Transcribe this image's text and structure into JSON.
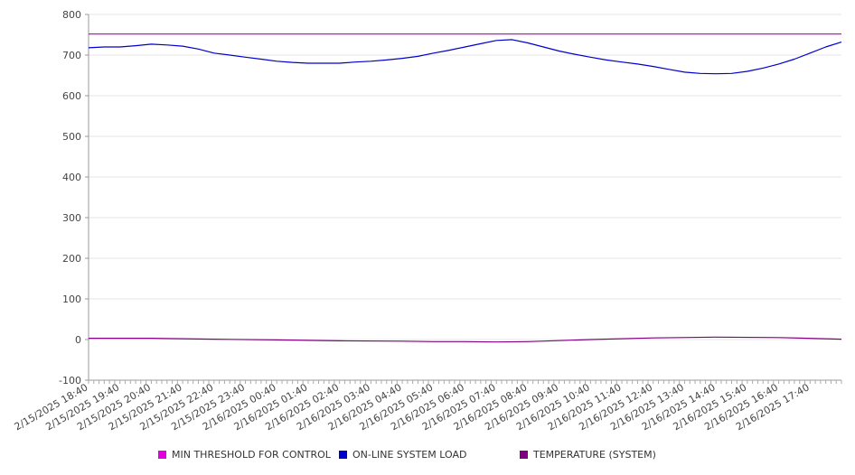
{
  "chart_data": {
    "type": "line",
    "title": "",
    "xlabel": "",
    "ylabel": "",
    "ylim": [
      -100,
      800
    ],
    "y_ticks": [
      "800",
      "700",
      "600",
      "500",
      "400",
      "300",
      "200",
      "100",
      "0",
      "-100"
    ],
    "x_tick_labels": [
      "2/15/2025 18:40",
      "2/15/2025 19:40",
      "2/15/2025 20:40",
      "2/15/2025 21:40",
      "2/15/2025 22:40",
      "2/15/2025 23:40",
      "2/16/2025 00:40",
      "2/16/2025 01:40",
      "2/16/2025 02:40",
      "2/16/2025 03:40",
      "2/16/2025 04:40",
      "2/16/2025 05:40",
      "2/16/2025 06:40",
      "2/16/2025 07:40",
      "2/16/2025 08:40",
      "2/16/2025 09:40",
      "2/16/2025 10:40",
      "2/16/2025 11:40",
      "2/16/2025 12:40",
      "2/16/2025 13:40",
      "2/16/2025 14:40",
      "2/16/2025 15:40",
      "2/16/2025 16:40",
      "2/16/2025 17:40"
    ],
    "grid": true,
    "legend_position": "bottom",
    "series": [
      {
        "name": "MIN THRESHOLD FOR CONTROL",
        "color": "#e000e0",
        "x": [
          "2/15/2025 18:40",
          "2/16/2025 18:40"
        ],
        "values": [
          752,
          752
        ]
      },
      {
        "name": "ON-LINE SYSTEM LOAD",
        "color": "#0000cc",
        "x": [
          "2/15/2025 18:40",
          "2/15/2025 19:10",
          "2/15/2025 19:40",
          "2/15/2025 20:10",
          "2/15/2025 20:40",
          "2/15/2025 21:10",
          "2/15/2025 21:40",
          "2/15/2025 22:10",
          "2/15/2025 22:40",
          "2/15/2025 23:10",
          "2/15/2025 23:40",
          "2/16/2025 00:10",
          "2/16/2025 00:40",
          "2/16/2025 01:10",
          "2/16/2025 01:40",
          "2/16/2025 02:10",
          "2/16/2025 02:40",
          "2/16/2025 03:10",
          "2/16/2025 03:40",
          "2/16/2025 04:10",
          "2/16/2025 04:40",
          "2/16/2025 05:10",
          "2/16/2025 05:40",
          "2/16/2025 06:10",
          "2/16/2025 06:40",
          "2/16/2025 07:10",
          "2/16/2025 07:40",
          "2/16/2025 08:10",
          "2/16/2025 08:40",
          "2/16/2025 09:10",
          "2/16/2025 09:40",
          "2/16/2025 10:10",
          "2/16/2025 10:40",
          "2/16/2025 11:10",
          "2/16/2025 11:40",
          "2/16/2025 12:10",
          "2/16/2025 12:40",
          "2/16/2025 13:10",
          "2/16/2025 13:40",
          "2/16/2025 14:10",
          "2/16/2025 14:40",
          "2/16/2025 15:10",
          "2/16/2025 15:40",
          "2/16/2025 16:10",
          "2/16/2025 16:40",
          "2/16/2025 17:10",
          "2/16/2025 17:40",
          "2/16/2025 18:10",
          "2/16/2025 18:40"
        ],
        "values": [
          718,
          720,
          720,
          723,
          727,
          725,
          722,
          715,
          705,
          700,
          695,
          690,
          685,
          682,
          680,
          680,
          680,
          683,
          685,
          688,
          692,
          697,
          705,
          712,
          720,
          728,
          736,
          738,
          730,
          720,
          710,
          702,
          695,
          688,
          683,
          678,
          672,
          665,
          658,
          655,
          654,
          655,
          660,
          668,
          678,
          690,
          705,
          720,
          732
        ]
      },
      {
        "name": "TEMPERATURE (SYSTEM)",
        "color": "#800080",
        "x": [
          "2/15/2025 18:40",
          "2/15/2025 20:40",
          "2/15/2025 22:40",
          "2/16/2025 00:40",
          "2/16/2025 02:40",
          "2/16/2025 04:40",
          "2/16/2025 05:40",
          "2/16/2025 06:40",
          "2/16/2025 07:40",
          "2/16/2025 08:40",
          "2/16/2025 10:40",
          "2/16/2025 12:40",
          "2/16/2025 14:40",
          "2/16/2025 16:40",
          "2/16/2025 18:40"
        ],
        "values": [
          3,
          3,
          1,
          -1,
          -3,
          -4,
          -5,
          -5,
          -6,
          -5,
          0,
          4,
          6,
          5,
          1
        ]
      }
    ]
  }
}
